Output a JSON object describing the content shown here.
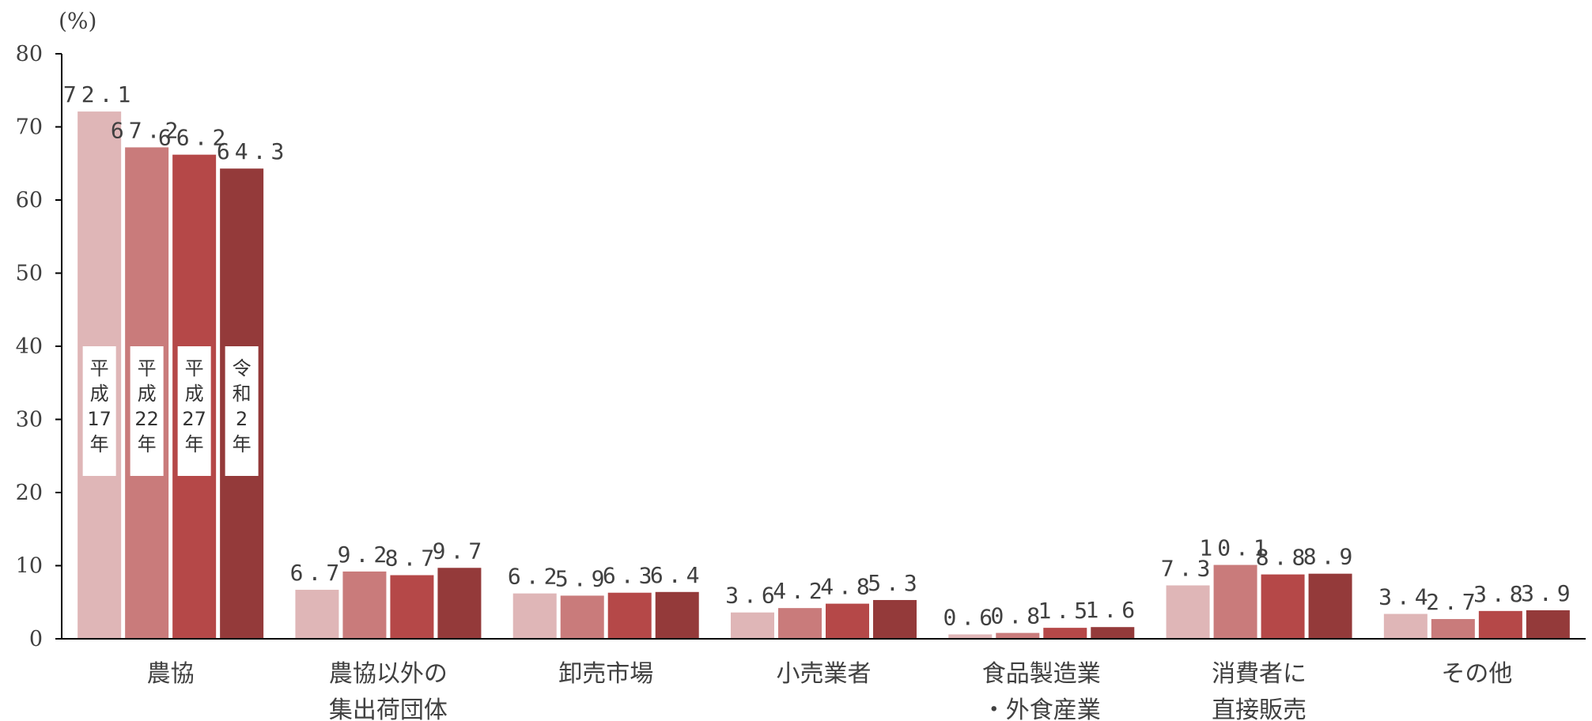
{
  "chart_data": {
    "type": "bar",
    "unit_label": "(%)",
    "ylim": [
      0,
      80
    ],
    "yticks": [
      0,
      10,
      20,
      30,
      40,
      50,
      60,
      70,
      80
    ],
    "grid": false,
    "legend_position": "inside-first-group",
    "categories": [
      [
        "農協"
      ],
      [
        "農協以外の",
        "集出荷団体"
      ],
      [
        "卸売市場"
      ],
      [
        "小売業者"
      ],
      [
        "食品製造業",
        "・外食産業"
      ],
      [
        "消費者に",
        "直接販売"
      ],
      [
        "その他"
      ]
    ],
    "series": [
      {
        "name": [
          "平",
          "成",
          "17",
          "年"
        ],
        "color": "#dfb6b7",
        "values": [
          72.1,
          6.7,
          6.2,
          3.6,
          0.6,
          7.3,
          3.4
        ],
        "labels": [
          "72.1",
          "6.7",
          "6.2",
          "3.6",
          "0.6",
          "7.3",
          "3.4"
        ]
      },
      {
        "name": [
          "平",
          "成",
          "22",
          "年"
        ],
        "color": "#c97b7b",
        "values": [
          67.2,
          9.2,
          5.9,
          4.2,
          0.8,
          10.1,
          2.7
        ],
        "labels": [
          "67.2",
          "9.2",
          "5.9",
          "4.2",
          "0.8",
          "10.1",
          "2.7"
        ]
      },
      {
        "name": [
          "平",
          "成",
          "27",
          "年"
        ],
        "color": "#b54848",
        "values": [
          66.2,
          8.7,
          6.3,
          4.8,
          1.5,
          8.8,
          3.8
        ],
        "labels": [
          "66.2",
          "8.7",
          "6.3",
          "4.8",
          "1.5",
          "8.8",
          "3.8"
        ]
      },
      {
        "name": [
          "令",
          "和",
          "2",
          "年"
        ],
        "color": "#943a3a",
        "values": [
          64.3,
          9.7,
          6.4,
          5.3,
          1.6,
          8.9,
          3.9
        ],
        "labels": [
          "64.3",
          "9.7",
          "6.4",
          "5.3",
          "1.6",
          "8.9",
          "3.9"
        ]
      }
    ]
  }
}
